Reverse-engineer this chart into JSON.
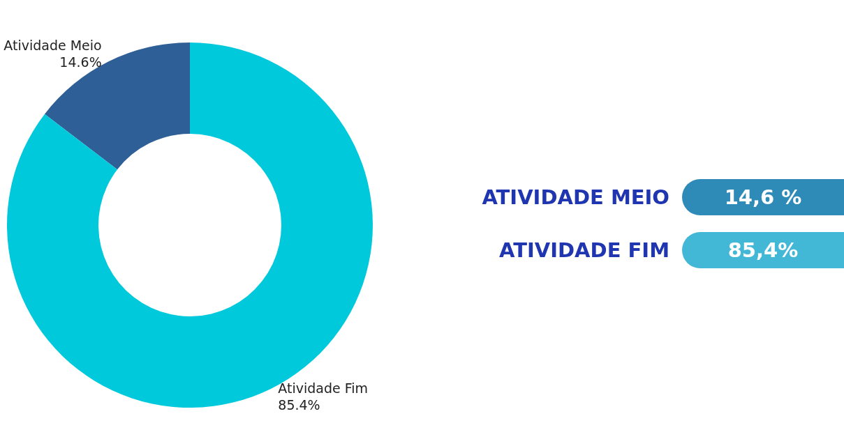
{
  "chart_data": [
    {
      "type": "donut",
      "categories": [
        "Atividade Meio",
        "Atividade Fim"
      ],
      "values": [
        14.6,
        85.4
      ],
      "colors": [
        "#2e5f96",
        "#00c9dc"
      ],
      "value_labels": [
        "14.6%",
        "85.4%"
      ]
    },
    {
      "type": "other",
      "annotations": [
        "ATIVIDADE MEIO",
        "14,6 %",
        "ATIVIDADE FIM",
        "85,4%"
      ]
    }
  ]
}
